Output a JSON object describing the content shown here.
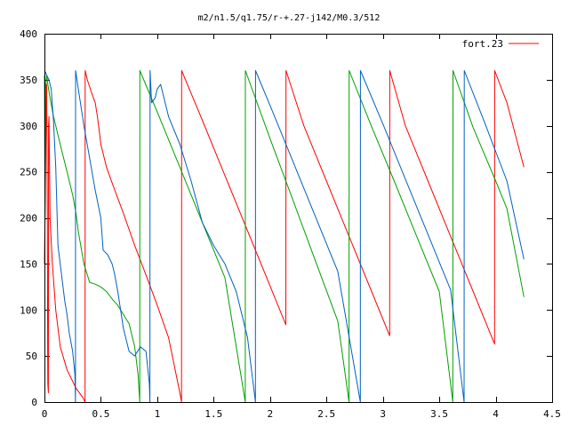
{
  "chart_data": {
    "type": "line",
    "title": "m2/n1.5/q1.75/r-+.27-j142/M0.3/512",
    "xlabel": "",
    "ylabel": "",
    "xlim": [
      0,
      4.5
    ],
    "ylim": [
      0,
      400
    ],
    "x_ticks": [
      "0",
      "0.5",
      "1",
      "1.5",
      "2",
      "2.5",
      "3",
      "3.5",
      "4",
      "4.5"
    ],
    "y_ticks": [
      "0",
      "50",
      "100",
      "150",
      "200",
      "250",
      "300",
      "350",
      "400"
    ],
    "grid": false,
    "legend": {
      "position": "top-right",
      "entries": [
        "fort.23"
      ]
    },
    "series": [
      {
        "name": "fort.23",
        "color": "#ff0000",
        "points": [
          [
            0.0,
            150
          ],
          [
            0.005,
            200
          ],
          [
            0.01,
            260
          ],
          [
            0.015,
            320
          ],
          [
            0.02,
            345
          ],
          [
            0.025,
            210
          ],
          [
            0.028,
            60
          ],
          [
            0.03,
            20
          ],
          [
            0.035,
            10
          ],
          [
            0.036,
            300
          ],
          [
            0.04,
            310
          ],
          [
            0.05,
            200
          ],
          [
            0.07,
            150
          ],
          [
            0.1,
            100
          ],
          [
            0.14,
            60
          ],
          [
            0.2,
            35
          ],
          [
            0.28,
            15
          ],
          [
            0.34,
            5
          ],
          [
            0.36,
            0
          ],
          [
            0.361,
            360
          ],
          [
            0.38,
            350
          ],
          [
            0.42,
            335
          ],
          [
            0.45,
            325
          ],
          [
            0.47,
            310
          ],
          [
            0.49,
            290
          ],
          [
            0.5,
            280
          ],
          [
            0.55,
            255
          ],
          [
            0.6,
            238
          ],
          [
            0.7,
            205
          ],
          [
            0.8,
            170
          ],
          [
            0.9,
            138
          ],
          [
            1.0,
            105
          ],
          [
            1.1,
            70
          ],
          [
            1.2,
            10
          ],
          [
            1.215,
            0
          ],
          [
            1.216,
            360
          ],
          [
            1.4,
            306
          ],
          [
            1.6,
            246
          ],
          [
            1.8,
            186
          ],
          [
            2.0,
            126
          ],
          [
            2.14,
            84
          ],
          [
            2.141,
            360
          ],
          [
            2.3,
            300
          ],
          [
            2.5,
            240
          ],
          [
            2.7,
            180
          ],
          [
            2.9,
            120
          ],
          [
            3.06,
            72
          ],
          [
            3.061,
            360
          ],
          [
            3.2,
            300
          ],
          [
            3.4,
            240
          ],
          [
            3.6,
            180
          ],
          [
            3.8,
            120
          ],
          [
            3.99,
            63
          ],
          [
            3.991,
            360
          ],
          [
            4.1,
            325
          ],
          [
            4.25,
            255
          ]
        ]
      },
      {
        "name": "",
        "color": "#00a000",
        "points": [
          [
            0.0,
            355
          ],
          [
            0.005,
            200
          ],
          [
            0.01,
            340
          ],
          [
            0.02,
            355
          ],
          [
            0.03,
            345
          ],
          [
            0.05,
            330
          ],
          [
            0.08,
            310
          ],
          [
            0.1,
            300
          ],
          [
            0.15,
            275
          ],
          [
            0.2,
            250
          ],
          [
            0.25,
            225
          ],
          [
            0.28,
            205
          ],
          [
            0.3,
            185
          ],
          [
            0.35,
            150
          ],
          [
            0.4,
            130
          ],
          [
            0.45,
            128
          ],
          [
            0.5,
            125
          ],
          [
            0.55,
            120
          ],
          [
            0.6,
            112
          ],
          [
            0.65,
            105
          ],
          [
            0.7,
            95
          ],
          [
            0.75,
            85
          ],
          [
            0.8,
            60
          ],
          [
            0.83,
            30
          ],
          [
            0.845,
            0
          ],
          [
            0.846,
            360
          ],
          [
            1.0,
            315
          ],
          [
            1.2,
            255
          ],
          [
            1.4,
            195
          ],
          [
            1.6,
            135
          ],
          [
            1.78,
            0
          ],
          [
            1.781,
            360
          ],
          [
            2.0,
            286
          ],
          [
            2.2,
            220
          ],
          [
            2.4,
            154
          ],
          [
            2.6,
            88
          ],
          [
            2.7,
            0
          ],
          [
            2.701,
            360
          ],
          [
            2.9,
            299
          ],
          [
            3.1,
            240
          ],
          [
            3.3,
            180
          ],
          [
            3.5,
            120
          ],
          [
            3.62,
            0
          ],
          [
            3.621,
            360
          ],
          [
            3.8,
            298
          ],
          [
            4.0,
            240
          ],
          [
            4.1,
            210
          ],
          [
            4.25,
            114
          ]
        ]
      },
      {
        "name": "",
        "color": "#0060c0",
        "points": [
          [
            0.0,
            360
          ],
          [
            0.01,
            358
          ],
          [
            0.02,
            355
          ],
          [
            0.04,
            350
          ],
          [
            0.06,
            340
          ],
          [
            0.08,
            305
          ],
          [
            0.1,
            255
          ],
          [
            0.12,
            170
          ],
          [
            0.15,
            140
          ],
          [
            0.18,
            110
          ],
          [
            0.2,
            95
          ],
          [
            0.22,
            75
          ],
          [
            0.25,
            55
          ],
          [
            0.27,
            30
          ],
          [
            0.275,
            0
          ],
          [
            0.276,
            360
          ],
          [
            0.3,
            340
          ],
          [
            0.35,
            300
          ],
          [
            0.4,
            265
          ],
          [
            0.45,
            230
          ],
          [
            0.5,
            200
          ],
          [
            0.52,
            165
          ],
          [
            0.56,
            160
          ],
          [
            0.6,
            150
          ],
          [
            0.62,
            140
          ],
          [
            0.65,
            120
          ],
          [
            0.7,
            80
          ],
          [
            0.75,
            55
          ],
          [
            0.8,
            50
          ],
          [
            0.85,
            60
          ],
          [
            0.9,
            55
          ],
          [
            0.93,
            20
          ],
          [
            0.935,
            0
          ],
          [
            0.936,
            360
          ],
          [
            0.95,
            325
          ],
          [
            0.98,
            330
          ],
          [
            1.0,
            340
          ],
          [
            1.03,
            345
          ],
          [
            1.06,
            330
          ],
          [
            1.1,
            310
          ],
          [
            1.2,
            280
          ],
          [
            1.3,
            240
          ],
          [
            1.4,
            195
          ],
          [
            1.5,
            170
          ],
          [
            1.6,
            150
          ],
          [
            1.7,
            120
          ],
          [
            1.8,
            70
          ],
          [
            1.87,
            0
          ],
          [
            1.871,
            360
          ],
          [
            2.0,
            322
          ],
          [
            2.2,
            262
          ],
          [
            2.4,
            202
          ],
          [
            2.6,
            142
          ],
          [
            2.8,
            0
          ],
          [
            2.801,
            360
          ],
          [
            3.0,
            302
          ],
          [
            3.2,
            242
          ],
          [
            3.4,
            182
          ],
          [
            3.6,
            122
          ],
          [
            3.72,
            0
          ],
          [
            3.721,
            360
          ],
          [
            3.9,
            304
          ],
          [
            4.1,
            240
          ],
          [
            4.25,
            155
          ]
        ]
      }
    ]
  }
}
